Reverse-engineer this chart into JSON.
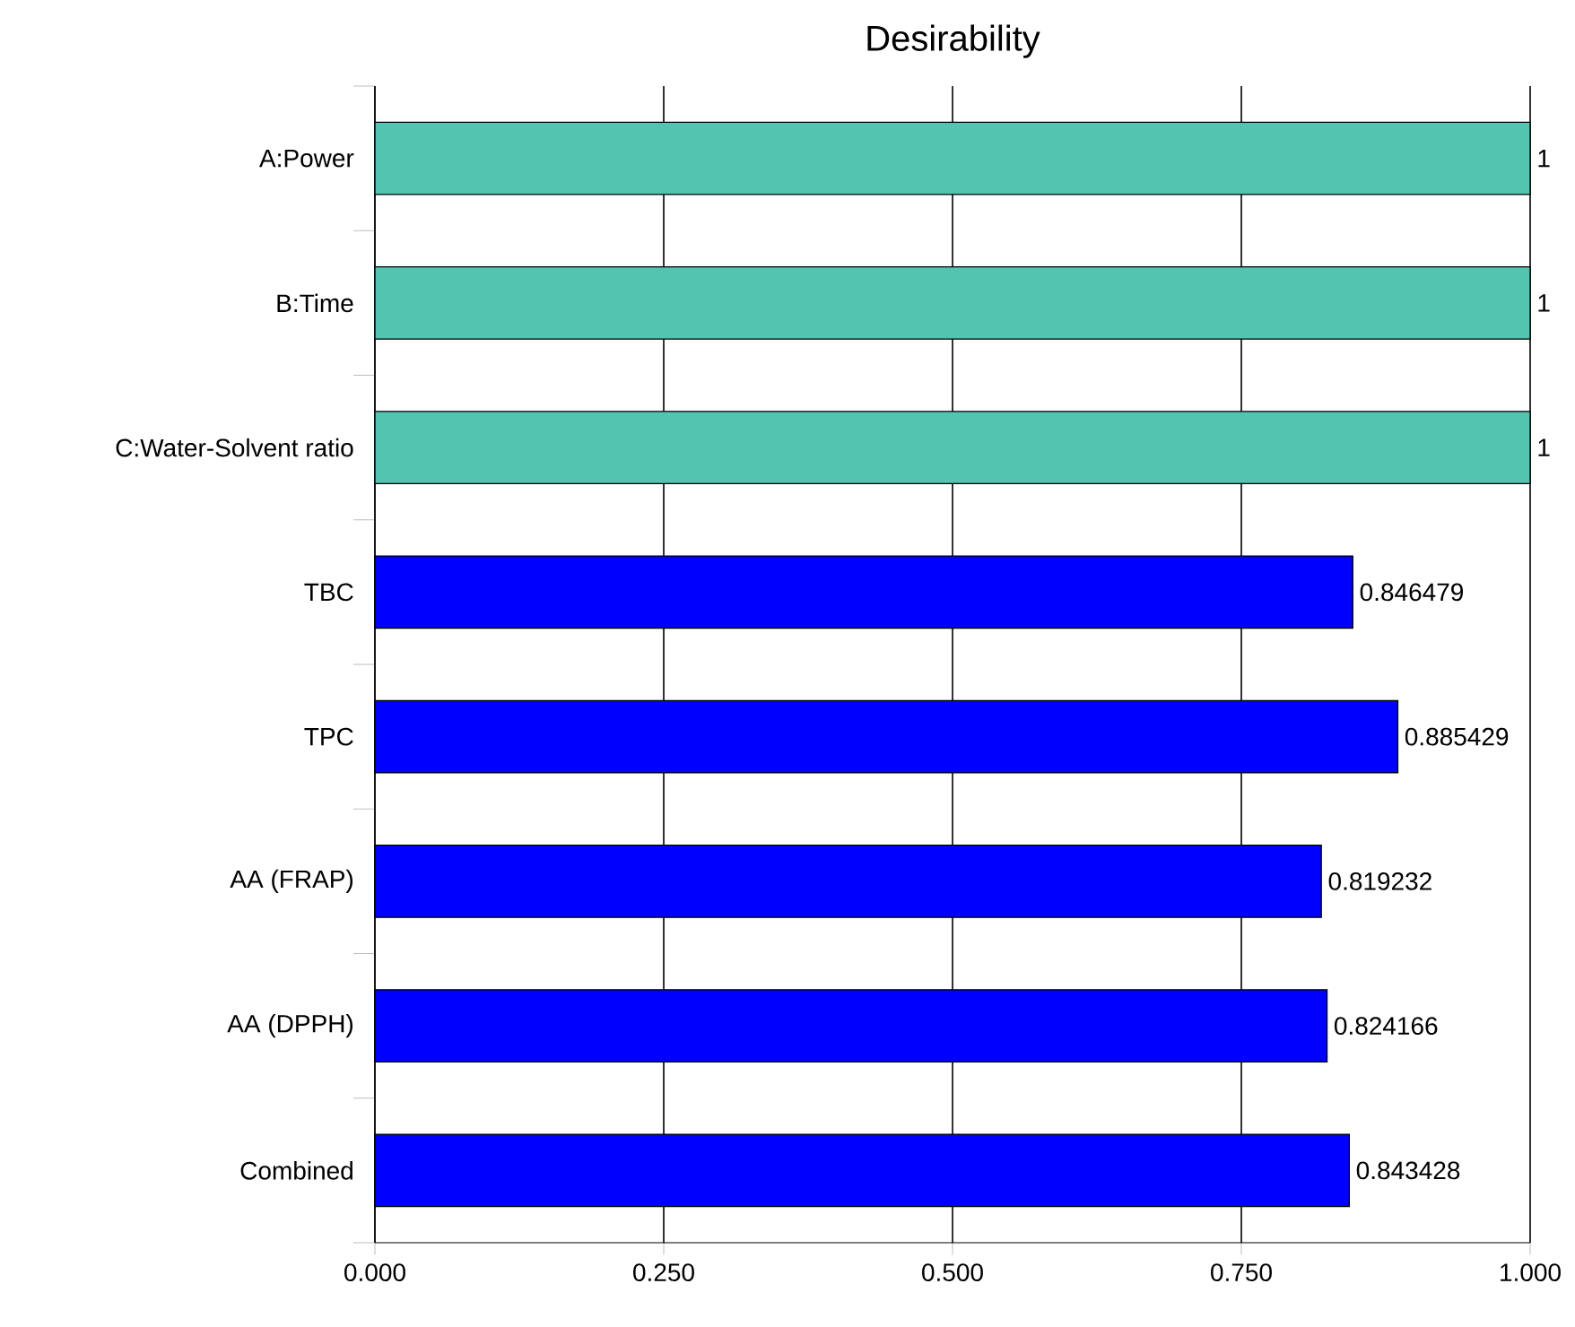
{
  "chart_data": {
    "type": "bar",
    "orientation": "horizontal",
    "title": "Desirability",
    "categories": [
      "A:Power",
      "B:Time",
      "C:Water-Solvent ratio",
      "TBC",
      "TPC",
      "AA (FRAP)",
      "AA (DPPH)",
      "Combined"
    ],
    "values": [
      1,
      1,
      1,
      0.846479,
      0.885429,
      0.819232,
      0.824166,
      0.843428
    ],
    "colors": [
      "#52c4b0",
      "#52c4b0",
      "#52c4b0",
      "#0000ff",
      "#0000ff",
      "#0000ff",
      "#0000ff",
      "#0000ff"
    ],
    "xlim": [
      0,
      1
    ],
    "xticks": [
      {
        "value": 0,
        "label": "0.000"
      },
      {
        "value": 0.25,
        "label": "0.250"
      },
      {
        "value": 0.5,
        "label": "0.500"
      },
      {
        "value": 0.75,
        "label": "0.750"
      },
      {
        "value": 1,
        "label": "1.000"
      }
    ],
    "grid": "x",
    "data_labels": true
  }
}
